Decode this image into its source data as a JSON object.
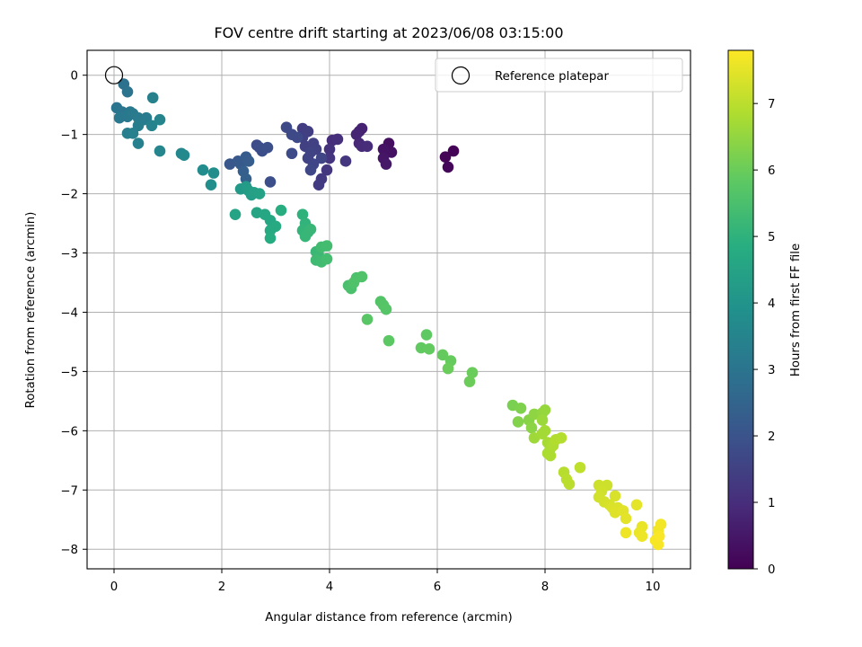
{
  "chart_data": {
    "type": "scatter",
    "title": "FOV centre drift starting at 2023/06/08 03:15:00",
    "xlabel": "Angular distance from reference (arcmin)",
    "ylabel": "Rotation from reference (arcmin)",
    "xlim": [
      -0.5,
      10.7
    ],
    "ylim": [
      -8.33,
      0.42
    ],
    "xticks": [
      0,
      2,
      4,
      6,
      8,
      10
    ],
    "xtick_labels": [
      "0",
      "2",
      "4",
      "6",
      "8",
      "10"
    ],
    "yticks": [
      0,
      -1,
      -2,
      -3,
      -4,
      -5,
      -6,
      -7,
      -8
    ],
    "ytick_labels": [
      "0",
      "−1",
      "−2",
      "−3",
      "−4",
      "−5",
      "−6",
      "−7",
      "−8"
    ],
    "grid": true,
    "colormap": "viridis",
    "colorbar": {
      "label": "Hours from first FF file",
      "range": [
        0,
        7.8
      ],
      "ticks": [
        0,
        1,
        2,
        3,
        4,
        5,
        6,
        7
      ],
      "tick_labels": [
        "0",
        "1",
        "2",
        "3",
        "4",
        "5",
        "6",
        "7"
      ]
    },
    "legend": {
      "location": "upper right",
      "entries": [
        "Reference platepar"
      ]
    },
    "reference_point": {
      "x": 0,
      "y": 0
    },
    "points": [
      {
        "x": 6.3,
        "y": -1.28,
        "c": 0.05
      },
      {
        "x": 6.15,
        "y": -1.38,
        "c": 0.08
      },
      {
        "x": 6.2,
        "y": -1.55,
        "c": 0.12
      },
      {
        "x": 5.1,
        "y": -1.15,
        "c": 0.3
      },
      {
        "x": 5.15,
        "y": -1.3,
        "c": 0.35
      },
      {
        "x": 5.0,
        "y": -1.25,
        "c": 0.4
      },
      {
        "x": 5.0,
        "y": -1.4,
        "c": 0.45
      },
      {
        "x": 5.05,
        "y": -1.5,
        "c": 0.5
      },
      {
        "x": 4.55,
        "y": -0.95,
        "c": 0.7
      },
      {
        "x": 4.6,
        "y": -0.9,
        "c": 0.75
      },
      {
        "x": 4.5,
        "y": -1.0,
        "c": 0.8
      },
      {
        "x": 4.55,
        "y": -1.15,
        "c": 0.85
      },
      {
        "x": 4.6,
        "y": -1.2,
        "c": 0.9
      },
      {
        "x": 4.7,
        "y": -1.2,
        "c": 0.95
      },
      {
        "x": 4.05,
        "y": -1.1,
        "c": 1.0
      },
      {
        "x": 4.15,
        "y": -1.08,
        "c": 1.05
      },
      {
        "x": 4.0,
        "y": -1.25,
        "c": 1.1
      },
      {
        "x": 4.0,
        "y": -1.4,
        "c": 1.15
      },
      {
        "x": 4.3,
        "y": -1.45,
        "c": 1.2
      },
      {
        "x": 3.95,
        "y": -1.6,
        "c": 1.25
      },
      {
        "x": 3.85,
        "y": -1.75,
        "c": 1.3
      },
      {
        "x": 3.8,
        "y": -1.85,
        "c": 1.35
      },
      {
        "x": 3.5,
        "y": -0.9,
        "c": 1.4
      },
      {
        "x": 3.6,
        "y": -0.95,
        "c": 1.42
      },
      {
        "x": 3.5,
        "y": -1.05,
        "c": 1.45
      },
      {
        "x": 3.55,
        "y": -1.2,
        "c": 1.48
      },
      {
        "x": 3.7,
        "y": -1.15,
        "c": 1.5
      },
      {
        "x": 3.75,
        "y": -1.25,
        "c": 1.52
      },
      {
        "x": 3.65,
        "y": -1.3,
        "c": 1.55
      },
      {
        "x": 3.6,
        "y": -1.4,
        "c": 1.58
      },
      {
        "x": 3.85,
        "y": -1.4,
        "c": 1.6
      },
      {
        "x": 3.7,
        "y": -1.5,
        "c": 1.62
      },
      {
        "x": 3.65,
        "y": -1.6,
        "c": 1.65
      },
      {
        "x": 3.2,
        "y": -0.88,
        "c": 1.7
      },
      {
        "x": 3.3,
        "y": -1.0,
        "c": 1.72
      },
      {
        "x": 3.4,
        "y": -1.05,
        "c": 1.74
      },
      {
        "x": 3.3,
        "y": -1.32,
        "c": 1.76
      },
      {
        "x": 2.65,
        "y": -1.18,
        "c": 1.8
      },
      {
        "x": 2.7,
        "y": -1.22,
        "c": 1.82
      },
      {
        "x": 2.75,
        "y": -1.28,
        "c": 1.84
      },
      {
        "x": 2.85,
        "y": -1.22,
        "c": 1.86
      },
      {
        "x": 2.9,
        "y": -1.8,
        "c": 1.88
      },
      {
        "x": 2.15,
        "y": -1.5,
        "c": 2.1
      },
      {
        "x": 2.3,
        "y": -1.45,
        "c": 2.15
      },
      {
        "x": 2.35,
        "y": -1.5,
        "c": 2.2
      },
      {
        "x": 2.45,
        "y": -1.38,
        "c": 2.25
      },
      {
        "x": 2.5,
        "y": -1.45,
        "c": 2.3
      },
      {
        "x": 2.4,
        "y": -1.62,
        "c": 2.35
      },
      {
        "x": 2.45,
        "y": -1.75,
        "c": 2.4
      },
      {
        "x": 0.18,
        "y": -0.15,
        "c": 2.9
      },
      {
        "x": 0.25,
        "y": -0.28,
        "c": 2.95
      },
      {
        "x": 0.05,
        "y": -0.55,
        "c": 3.0
      },
      {
        "x": 0.15,
        "y": -0.62,
        "c": 3.05
      },
      {
        "x": 0.1,
        "y": -0.72,
        "c": 3.1
      },
      {
        "x": 0.25,
        "y": -0.7,
        "c": 3.12
      },
      {
        "x": 0.3,
        "y": -0.62,
        "c": 3.15
      },
      {
        "x": 0.35,
        "y": -0.65,
        "c": 3.18
      },
      {
        "x": 0.45,
        "y": -0.72,
        "c": 3.2
      },
      {
        "x": 0.55,
        "y": -0.75,
        "c": 3.22
      },
      {
        "x": 0.6,
        "y": -0.72,
        "c": 3.25
      },
      {
        "x": 0.45,
        "y": -0.85,
        "c": 3.28
      },
      {
        "x": 0.25,
        "y": -0.98,
        "c": 3.3
      },
      {
        "x": 0.35,
        "y": -0.98,
        "c": 3.32
      },
      {
        "x": 0.45,
        "y": -1.15,
        "c": 3.35
      },
      {
        "x": 0.72,
        "y": -0.38,
        "c": 3.4
      },
      {
        "x": 0.7,
        "y": -0.85,
        "c": 3.45
      },
      {
        "x": 0.85,
        "y": -0.75,
        "c": 3.5
      },
      {
        "x": 0.85,
        "y": -1.28,
        "c": 3.55
      },
      {
        "x": 1.25,
        "y": -1.32,
        "c": 3.6
      },
      {
        "x": 1.3,
        "y": -1.35,
        "c": 3.65
      },
      {
        "x": 1.65,
        "y": -1.6,
        "c": 3.75
      },
      {
        "x": 1.85,
        "y": -1.65,
        "c": 3.8
      },
      {
        "x": 1.8,
        "y": -1.85,
        "c": 3.85
      },
      {
        "x": 2.35,
        "y": -1.92,
        "c": 4.2
      },
      {
        "x": 2.45,
        "y": -1.88,
        "c": 4.25
      },
      {
        "x": 2.5,
        "y": -1.95,
        "c": 4.3
      },
      {
        "x": 2.55,
        "y": -2.02,
        "c": 4.35
      },
      {
        "x": 2.6,
        "y": -1.98,
        "c": 4.4
      },
      {
        "x": 2.7,
        "y": -2.0,
        "c": 4.45
      },
      {
        "x": 2.25,
        "y": -2.35,
        "c": 4.5
      },
      {
        "x": 2.65,
        "y": -2.32,
        "c": 4.55
      },
      {
        "x": 2.8,
        "y": -2.35,
        "c": 4.6
      },
      {
        "x": 2.9,
        "y": -2.45,
        "c": 4.65
      },
      {
        "x": 3.0,
        "y": -2.55,
        "c": 4.7
      },
      {
        "x": 2.9,
        "y": -2.62,
        "c": 4.75
      },
      {
        "x": 2.9,
        "y": -2.75,
        "c": 4.8
      },
      {
        "x": 3.1,
        "y": -2.28,
        "c": 4.85
      },
      {
        "x": 3.5,
        "y": -2.35,
        "c": 5.0
      },
      {
        "x": 3.55,
        "y": -2.5,
        "c": 5.05
      },
      {
        "x": 3.5,
        "y": -2.62,
        "c": 5.1
      },
      {
        "x": 3.6,
        "y": -2.65,
        "c": 5.12
      },
      {
        "x": 3.55,
        "y": -2.72,
        "c": 5.15
      },
      {
        "x": 3.65,
        "y": -2.6,
        "c": 5.18
      },
      {
        "x": 3.75,
        "y": -2.98,
        "c": 5.2
      },
      {
        "x": 3.8,
        "y": -3.05,
        "c": 5.25
      },
      {
        "x": 3.75,
        "y": -3.12,
        "c": 5.3
      },
      {
        "x": 3.85,
        "y": -3.15,
        "c": 5.32
      },
      {
        "x": 3.85,
        "y": -2.9,
        "c": 5.35
      },
      {
        "x": 3.95,
        "y": -2.88,
        "c": 5.38
      },
      {
        "x": 3.95,
        "y": -3.1,
        "c": 5.4
      },
      {
        "x": 4.35,
        "y": -3.55,
        "c": 5.5
      },
      {
        "x": 4.4,
        "y": -3.6,
        "c": 5.52
      },
      {
        "x": 4.5,
        "y": -3.42,
        "c": 5.55
      },
      {
        "x": 4.6,
        "y": -3.4,
        "c": 5.58
      },
      {
        "x": 4.45,
        "y": -3.5,
        "c": 5.6
      },
      {
        "x": 4.95,
        "y": -3.82,
        "c": 5.65
      },
      {
        "x": 5.0,
        "y": -3.88,
        "c": 5.68
      },
      {
        "x": 5.05,
        "y": -3.95,
        "c": 5.7
      },
      {
        "x": 4.7,
        "y": -4.12,
        "c": 5.75
      },
      {
        "x": 5.1,
        "y": -4.48,
        "c": 5.8
      },
      {
        "x": 5.8,
        "y": -4.38,
        "c": 5.85
      },
      {
        "x": 5.7,
        "y": -4.6,
        "c": 5.88
      },
      {
        "x": 5.85,
        "y": -4.62,
        "c": 5.9
      },
      {
        "x": 6.1,
        "y": -4.72,
        "c": 5.92
      },
      {
        "x": 6.25,
        "y": -4.82,
        "c": 5.95
      },
      {
        "x": 6.2,
        "y": -4.95,
        "c": 5.98
      },
      {
        "x": 6.65,
        "y": -5.02,
        "c": 6.0
      },
      {
        "x": 6.6,
        "y": -5.17,
        "c": 6.02
      },
      {
        "x": 7.4,
        "y": -5.57,
        "c": 6.2
      },
      {
        "x": 7.55,
        "y": -5.62,
        "c": 6.25
      },
      {
        "x": 7.5,
        "y": -5.85,
        "c": 6.3
      },
      {
        "x": 7.7,
        "y": -5.82,
        "c": 6.35
      },
      {
        "x": 7.75,
        "y": -5.95,
        "c": 6.4
      },
      {
        "x": 7.8,
        "y": -5.72,
        "c": 6.45
      },
      {
        "x": 7.95,
        "y": -5.7,
        "c": 6.5
      },
      {
        "x": 8.0,
        "y": -5.65,
        "c": 6.55
      },
      {
        "x": 7.95,
        "y": -5.82,
        "c": 6.6
      },
      {
        "x": 7.8,
        "y": -6.12,
        "c": 6.65
      },
      {
        "x": 7.95,
        "y": -6.05,
        "c": 6.7
      },
      {
        "x": 8.0,
        "y": -6.0,
        "c": 6.72
      },
      {
        "x": 8.05,
        "y": -6.2,
        "c": 6.75
      },
      {
        "x": 8.1,
        "y": -6.3,
        "c": 6.78
      },
      {
        "x": 8.05,
        "y": -6.38,
        "c": 6.8
      },
      {
        "x": 8.1,
        "y": -6.42,
        "c": 6.82
      },
      {
        "x": 8.15,
        "y": -6.25,
        "c": 6.85
      },
      {
        "x": 8.2,
        "y": -6.15,
        "c": 6.88
      },
      {
        "x": 8.3,
        "y": -6.12,
        "c": 6.9
      },
      {
        "x": 8.35,
        "y": -6.7,
        "c": 6.95
      },
      {
        "x": 8.4,
        "y": -6.82,
        "c": 6.98
      },
      {
        "x": 8.45,
        "y": -6.9,
        "c": 7.0
      },
      {
        "x": 8.65,
        "y": -6.62,
        "c": 7.05
      },
      {
        "x": 9.0,
        "y": -6.92,
        "c": 7.2
      },
      {
        "x": 9.15,
        "y": -6.92,
        "c": 7.22
      },
      {
        "x": 9.05,
        "y": -7.02,
        "c": 7.25
      },
      {
        "x": 9.0,
        "y": -7.12,
        "c": 7.28
      },
      {
        "x": 9.1,
        "y": -7.2,
        "c": 7.3
      },
      {
        "x": 9.2,
        "y": -7.25,
        "c": 7.32
      },
      {
        "x": 9.3,
        "y": -7.1,
        "c": 7.35
      },
      {
        "x": 9.25,
        "y": -7.3,
        "c": 7.38
      },
      {
        "x": 9.35,
        "y": -7.3,
        "c": 7.4
      },
      {
        "x": 9.3,
        "y": -7.38,
        "c": 7.42
      },
      {
        "x": 9.45,
        "y": -7.35,
        "c": 7.45
      },
      {
        "x": 9.5,
        "y": -7.48,
        "c": 7.48
      },
      {
        "x": 9.7,
        "y": -7.25,
        "c": 7.5
      },
      {
        "x": 9.8,
        "y": -7.62,
        "c": 7.55
      },
      {
        "x": 9.75,
        "y": -7.72,
        "c": 7.58
      },
      {
        "x": 9.8,
        "y": -7.78,
        "c": 7.6
      },
      {
        "x": 9.5,
        "y": -7.72,
        "c": 7.62
      },
      {
        "x": 10.1,
        "y": -7.68,
        "c": 7.65
      },
      {
        "x": 10.15,
        "y": -7.58,
        "c": 7.68
      },
      {
        "x": 10.05,
        "y": -7.85,
        "c": 7.7
      },
      {
        "x": 10.1,
        "y": -7.92,
        "c": 7.72
      },
      {
        "x": 10.12,
        "y": -7.78,
        "c": 7.75
      }
    ]
  }
}
